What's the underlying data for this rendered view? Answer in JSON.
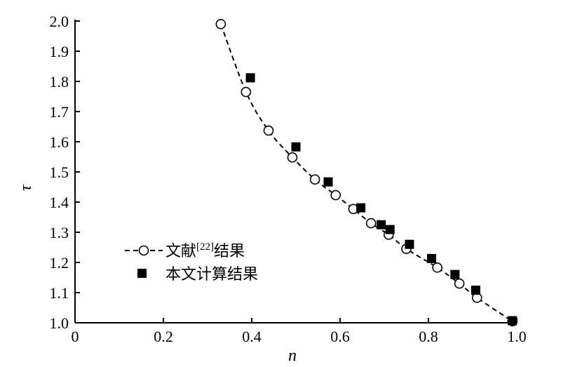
{
  "chart_data": {
    "type": "scatter",
    "xlabel": "n",
    "ylabel": "τ",
    "xlim": [
      0,
      1.0
    ],
    "ylim": [
      1.0,
      2.0
    ],
    "xticks": [
      "0",
      "0.2",
      "0.4",
      "0.6",
      "0.8",
      "1.0"
    ],
    "yticks": [
      "1.0",
      "1.1",
      "1.2",
      "1.3",
      "1.4",
      "1.5",
      "1.6",
      "1.7",
      "1.8",
      "1.9",
      "2.0"
    ],
    "grid": false,
    "legend_position": "lower-left",
    "series": [
      {
        "name": "文献[22]结果",
        "name_parts": {
          "before": "文献",
          "sup": "[22]",
          "after": "结果"
        },
        "marker": "open-circle",
        "line": "dashed",
        "x": [
          0.33,
          0.387,
          0.438,
          0.492,
          0.543,
          0.59,
          0.63,
          0.67,
          0.71,
          0.75,
          0.82,
          0.87,
          0.91,
          0.99
        ],
        "y": [
          1.99,
          1.765,
          1.637,
          1.548,
          1.475,
          1.423,
          1.377,
          1.33,
          1.292,
          1.245,
          1.183,
          1.13,
          1.083,
          1.005
        ]
      },
      {
        "name": "本文计算结果",
        "marker": "filled-square",
        "line": "none",
        "x": [
          0.397,
          0.5,
          0.573,
          0.647,
          0.693,
          0.713,
          0.757,
          0.807,
          0.86,
          0.907,
          0.99
        ],
        "y": [
          1.812,
          1.583,
          1.467,
          1.381,
          1.325,
          1.309,
          1.26,
          1.213,
          1.16,
          1.108,
          1.007
        ]
      }
    ]
  }
}
